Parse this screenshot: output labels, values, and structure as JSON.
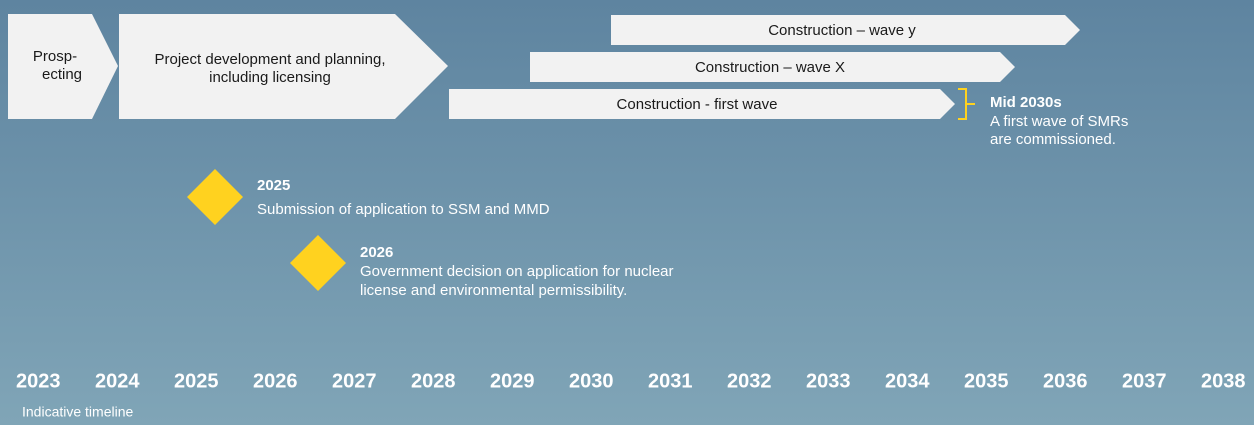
{
  "phases": [
    {
      "lines": [
        "Prosp-",
        "ecting"
      ]
    },
    {
      "lines": [
        "Project development and planning,",
        "including licensing"
      ]
    },
    {
      "lines": [
        "Construction – wave y"
      ]
    },
    {
      "lines": [
        "Construction – wave X"
      ]
    },
    {
      "lines": [
        "Construction - first wave"
      ]
    }
  ],
  "callout": {
    "title": "Mid 2030s",
    "lines": [
      "A first wave of SMRs",
      "are commissioned."
    ]
  },
  "milestones": [
    {
      "year": "2025",
      "lines": [
        "Submission of application to SSM and MMD"
      ]
    },
    {
      "year": "2026",
      "lines": [
        "Government decision on application for nuclear",
        "license and environmental permissibility."
      ]
    }
  ],
  "years": [
    "2023",
    "2024",
    "2025",
    "2026",
    "2027",
    "2028",
    "2029",
    "2030",
    "2031",
    "2032",
    "2033",
    "2034",
    "2035",
    "2036",
    "2037",
    "2038"
  ],
  "footer": "Indicative timeline"
}
